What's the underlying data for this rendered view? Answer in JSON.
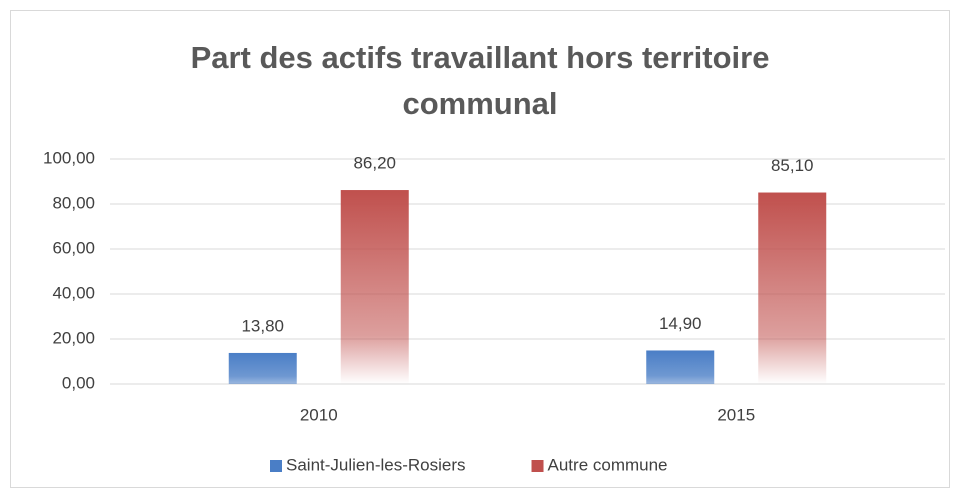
{
  "chart_data": {
    "type": "bar",
    "title": "Part des actifs travaillant hors territoire communal",
    "categories": [
      "2010",
      "2015"
    ],
    "series": [
      {
        "name": "Saint-Julien-les-Rosiers",
        "color": "#4a7ec6",
        "values": [
          13.8,
          14.9
        ],
        "value_labels": [
          "13,80",
          "14,90"
        ]
      },
      {
        "name": "Autre commune",
        "color": "#c0504d",
        "values": [
          86.2,
          85.1
        ],
        "value_labels": [
          "86,20",
          "85,10"
        ]
      }
    ],
    "ylim": [
      0,
      100
    ],
    "yticks": [
      {
        "value": 0,
        "label": "0,00"
      },
      {
        "value": 20,
        "label": "20,00"
      },
      {
        "value": 40,
        "label": "40,00"
      },
      {
        "value": 60,
        "label": "60,00"
      },
      {
        "value": 80,
        "label": "80,00"
      },
      {
        "value": 100,
        "label": "100,00"
      }
    ],
    "grid": true,
    "legend": "bottom"
  }
}
